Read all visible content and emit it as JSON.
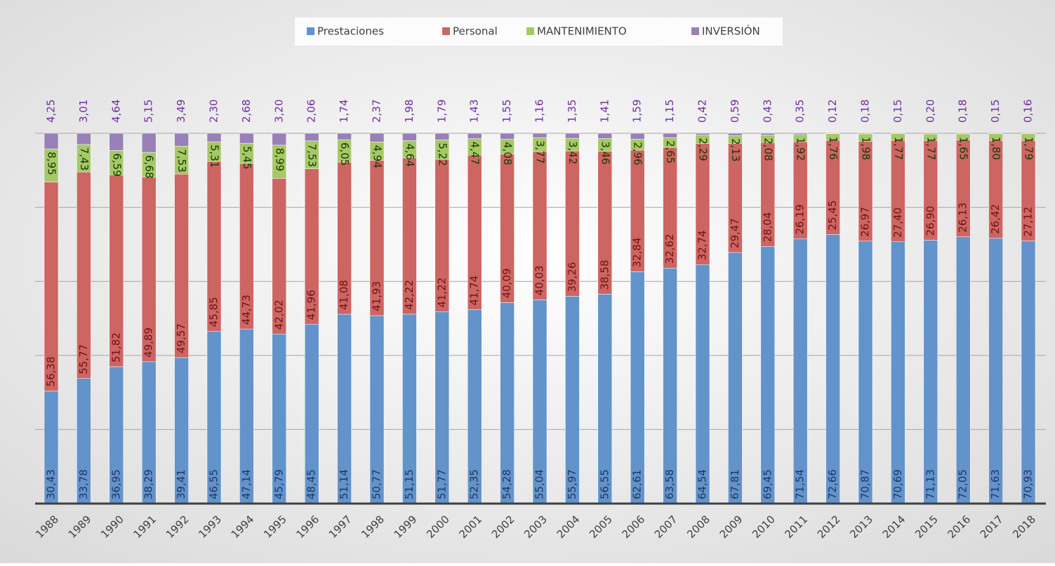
{
  "chart_data": {
    "type": "stacked_bar",
    "categories": [
      "1988",
      "1989",
      "1990",
      "1991",
      "1992",
      "1993",
      "1994",
      "1995",
      "1996",
      "1997",
      "1998",
      "1999",
      "2000",
      "2001",
      "2002",
      "2003",
      "2004",
      "2005",
      "2006",
      "2007",
      "2008",
      "2009",
      "2010",
      "2011",
      "2012",
      "2013",
      "2014",
      "2015",
      "2016",
      "2017",
      "2018"
    ],
    "ylim": [
      0,
      100
    ],
    "yticks": [
      0,
      20,
      40,
      60,
      80,
      100
    ],
    "grid": true,
    "legend": "top",
    "series": [
      {
        "name": "Prestaciones",
        "color": "#6393cb",
        "label_color": "#1f3864",
        "values": [
          30.43,
          33.78,
          36.95,
          38.29,
          39.41,
          46.55,
          47.14,
          45.79,
          48.45,
          51.14,
          50.77,
          51.15,
          51.77,
          52.35,
          54.28,
          55.04,
          55.97,
          56.55,
          62.61,
          63.58,
          64.54,
          67.81,
          69.45,
          71.54,
          72.66,
          70.87,
          70.69,
          71.13,
          72.05,
          71.63,
          70.93
        ],
        "value_labels": [
          "30,43",
          "33,78",
          "36,95",
          "38,29",
          "39,41",
          "46,55",
          "47,14",
          "45,79",
          "48,45",
          "51,14",
          "50,77",
          "51,15",
          "51,77",
          "52,35",
          "54,28",
          "55,04",
          "55,97",
          "56,55",
          "62,61",
          "63,58",
          "64,54",
          "67,81",
          "69,45",
          "71,54",
          "72,66",
          "70,87",
          "70,69",
          "71,13",
          "72,05",
          "71,63",
          "70,93"
        ]
      },
      {
        "name": "Personal",
        "color": "#cd6563",
        "label_color": "#6e1414",
        "values": [
          56.38,
          55.77,
          51.82,
          49.89,
          49.57,
          45.85,
          44.73,
          42.02,
          41.96,
          41.08,
          41.93,
          42.22,
          41.22,
          41.74,
          40.09,
          40.03,
          39.26,
          38.58,
          32.84,
          32.62,
          32.74,
          29.47,
          28.04,
          26.19,
          25.45,
          26.97,
          27.4,
          26.9,
          26.13,
          26.42,
          27.12
        ],
        "value_labels": [
          "56,38",
          "55,77",
          "51,82",
          "49,89",
          "49,57",
          "45,85",
          "44,73",
          "42,02",
          "41,96",
          "41,08",
          "41,93",
          "42,22",
          "41,22",
          "41,74",
          "40,09",
          "40,03",
          "39,26",
          "38,58",
          "32,84",
          "32,62",
          "32,74",
          "29,47",
          "28,04",
          "26,19",
          "25,45",
          "26,97",
          "27,40",
          "26,90",
          "26,13",
          "26,42",
          "27,12"
        ]
      },
      {
        "name": "MANTENIMIENTO",
        "color": "#a6c867",
        "label_color": "#173a00",
        "values": [
          8.95,
          7.43,
          6.59,
          6.68,
          7.53,
          5.31,
          5.45,
          8.99,
          7.53,
          6.05,
          4.94,
          4.64,
          5.22,
          4.47,
          4.08,
          3.77,
          3.42,
          3.46,
          2.96,
          2.65,
          2.29,
          2.13,
          2.08,
          1.92,
          1.76,
          1.98,
          1.77,
          1.77,
          1.65,
          1.8,
          1.79
        ],
        "value_labels": [
          "8,95",
          "7,43",
          "6,59",
          "6,68",
          "7,53",
          "5,31",
          "5,45",
          "8,99",
          "7,53",
          "6,05",
          "4,94",
          "4,64",
          "5,22",
          "4,47",
          "4,08",
          "3,77",
          "3,42",
          "3,46",
          "2,96",
          "2,65",
          "2,29",
          "2,13",
          "2,08",
          "1,92",
          "1,76",
          "1,98",
          "1,77",
          "1,77",
          "1,65",
          "1,80",
          "1,79"
        ]
      },
      {
        "name": "INVERSIÓN",
        "color": "#9980b8",
        "label_color": "#7030a0",
        "values": [
          4.25,
          3.01,
          4.64,
          5.15,
          3.49,
          2.3,
          2.68,
          3.2,
          2.06,
          1.74,
          2.37,
          1.98,
          1.79,
          1.43,
          1.55,
          1.16,
          1.35,
          1.41,
          1.59,
          1.15,
          0.42,
          0.59,
          0.43,
          0.35,
          0.12,
          0.18,
          0.15,
          0.2,
          0.18,
          0.15,
          0.16
        ],
        "value_labels": [
          "4,25",
          "3,01",
          "4,64",
          "5,15",
          "3,49",
          "2,30",
          "2,68",
          "3,20",
          "2,06",
          "1,74",
          "2,37",
          "1,98",
          "1,79",
          "1,43",
          "1,55",
          "1,16",
          "1,35",
          "1,41",
          "1,59",
          "1,15",
          "0,42",
          "0,59",
          "0,43",
          "0,35",
          "0,12",
          "0,18",
          "0,15",
          "0,20",
          "0,18",
          "0,15",
          "0,16"
        ]
      }
    ]
  }
}
